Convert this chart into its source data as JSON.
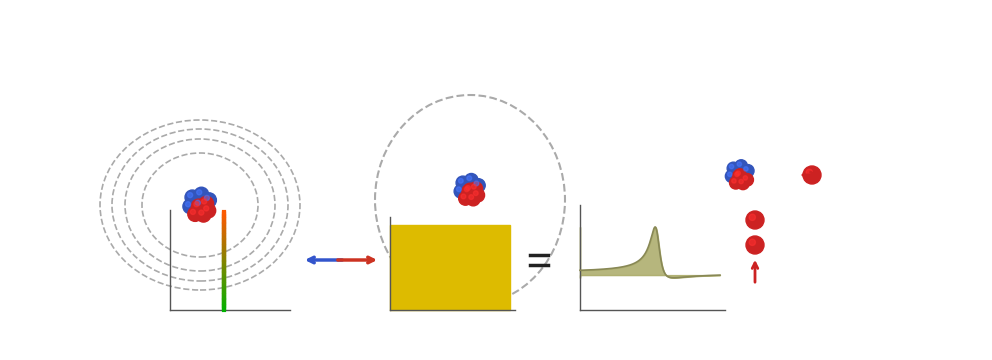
{
  "bg_color": "#ffffff",
  "atom_colors": {
    "red": "#cc2222",
    "blue": "#3355bb"
  },
  "dashed_circle_color": "#aaaaaa",
  "arrow_color_red": "#cc2222",
  "arrow_color_blue": "#3355bb",
  "arrow_color_purple": "#7733aa",
  "spike_color_top": "#cc2222",
  "spike_color_bottom": "#44aa22",
  "continuum_color": "#ddbb00",
  "resonance_color": "#aaaa66",
  "eq_sign_color": "#222222",
  "axis_color": "#555555"
}
